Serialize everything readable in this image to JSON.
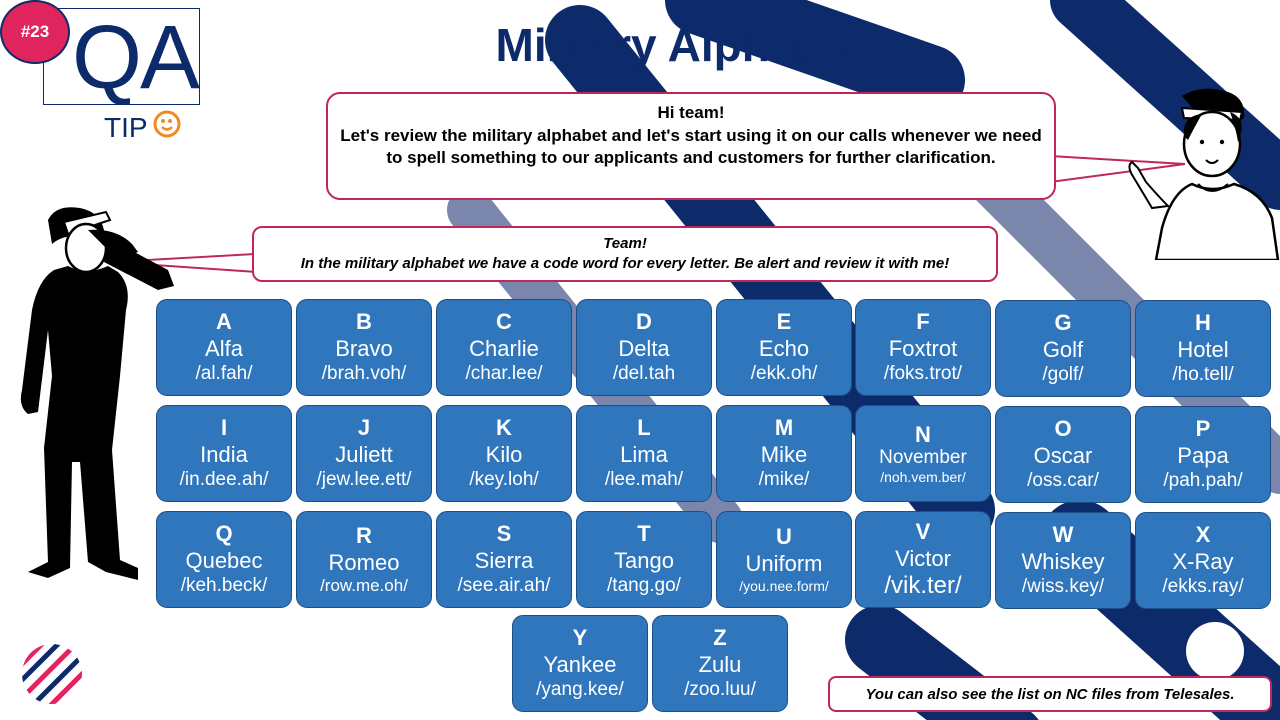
{
  "header": {
    "badge": "#23",
    "logo_main": "QA",
    "logo_sub": "TIP",
    "title": "Military Alphabet"
  },
  "bubbles": {
    "top": {
      "greeting": "Hi team!",
      "body": "Let's review the military alphabet and let's start using it on our calls whenever we need to spell something to our applicants and customers for further clarification."
    },
    "left": {
      "greeting": "Team!",
      "body": "In the military alphabet we have a code word for every letter. Be alert and review it with me!"
    },
    "bottom": "You can also see the list on NC files from Telesales."
  },
  "alphabet": [
    {
      "letter": "A",
      "word": "Alfa",
      "pron": "/al.fah/"
    },
    {
      "letter": "B",
      "word": "Bravo",
      "pron": "/brah.voh/"
    },
    {
      "letter": "C",
      "word": "Charlie",
      "pron": "/char.lee/"
    },
    {
      "letter": "D",
      "word": "Delta",
      "pron": "/del.tah"
    },
    {
      "letter": "E",
      "word": "Echo",
      "pron": "/ekk.oh/"
    },
    {
      "letter": "F",
      "word": "Foxtrot",
      "pron": "/foks.trot/"
    },
    {
      "letter": "G",
      "word": "Golf",
      "pron": "/golf/"
    },
    {
      "letter": "H",
      "word": "Hotel",
      "pron": "/ho.tell/"
    },
    {
      "letter": "I",
      "word": "India",
      "pron": "/in.dee.ah/"
    },
    {
      "letter": "J",
      "word": "Juliett",
      "pron": "/jew.lee.ett/"
    },
    {
      "letter": "K",
      "word": "Kilo",
      "pron": "/key.loh/"
    },
    {
      "letter": "L",
      "word": "Lima",
      "pron": "/lee.mah/"
    },
    {
      "letter": "M",
      "word": "Mike",
      "pron": "/mike/"
    },
    {
      "letter": "N",
      "word": "November",
      "pron": "/noh.vem.ber/"
    },
    {
      "letter": "O",
      "word": "Oscar",
      "pron": "/oss.car/"
    },
    {
      "letter": "P",
      "word": "Papa",
      "pron": "/pah.pah/"
    },
    {
      "letter": "Q",
      "word": "Quebec",
      "pron": "/keh.beck/"
    },
    {
      "letter": "R",
      "word": "Romeo",
      "pron": "/row.me.oh/"
    },
    {
      "letter": "S",
      "word": "Sierra",
      "pron": "/see.air.ah/"
    },
    {
      "letter": "T",
      "word": "Tango",
      "pron": "/tang.go/"
    },
    {
      "letter": "U",
      "word": "Uniform",
      "pron": "/you.nee.form/"
    },
    {
      "letter": "V",
      "word": "Victor",
      "pron": "/vik.ter/"
    },
    {
      "letter": "W",
      "word": "Whiskey",
      "pron": "/wiss.key/"
    },
    {
      "letter": "X",
      "word": "X-Ray",
      "pron": "/ekks.ray/"
    },
    {
      "letter": "Y",
      "word": "Yankee",
      "pron": "/yang.kee/"
    },
    {
      "letter": "Z",
      "word": "Zulu",
      "pron": "/zoo.luu/"
    }
  ],
  "colors": {
    "navy": "#0d2a6b",
    "slate": "#7b86ad",
    "card": "#2f76bc",
    "accent": "#c0265a",
    "badge": "#e0245e"
  },
  "icons": {
    "tip_face": "smiley-face-icon",
    "brand_logo": "striped-circle-logo-icon",
    "saluting_man": "saluting-man-silhouette",
    "presenting_woman": "presenting-woman-illustration"
  }
}
